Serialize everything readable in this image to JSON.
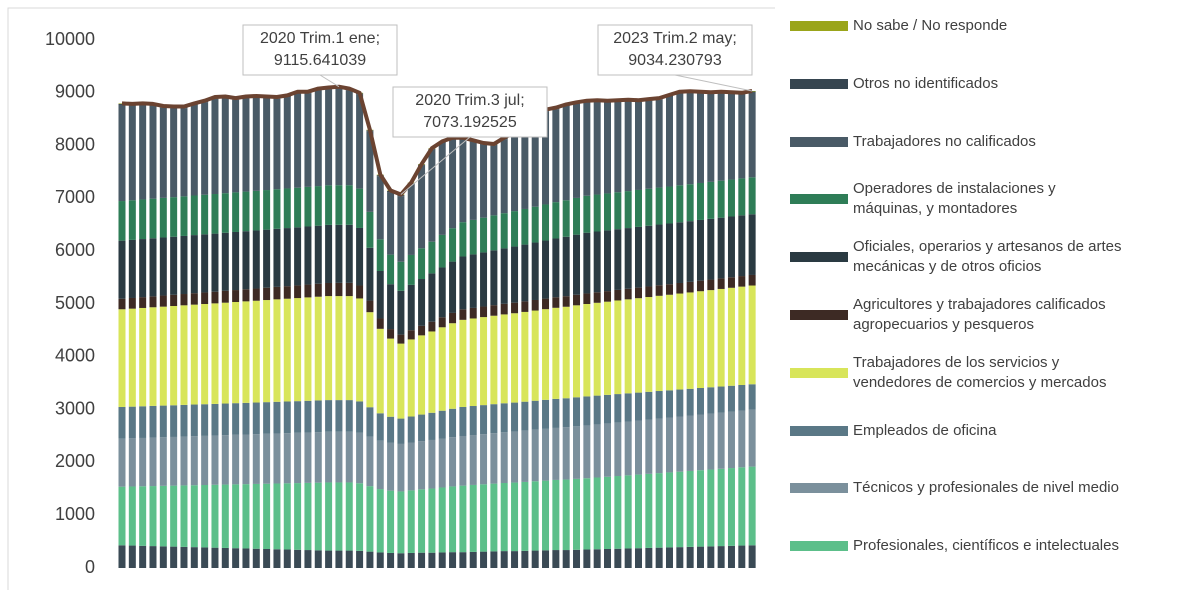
{
  "chart_data": {
    "type": "bar",
    "stacked": true,
    "legend": "right",
    "categories": [
      null,
      null,
      null,
      null,
      null,
      null,
      null,
      null,
      null,
      null,
      null,
      null,
      null,
      null,
      null,
      null,
      null,
      null,
      null,
      null,
      null,
      "2020 Trim.1 ene;",
      null,
      null,
      null,
      null,
      null,
      "2020 Trim.3 jul;",
      null,
      null,
      null,
      null,
      null,
      null,
      null,
      null,
      null,
      null,
      null,
      null,
      null,
      null,
      null,
      null,
      null,
      null,
      null,
      null,
      null,
      null,
      null,
      null,
      null,
      null,
      null,
      null,
      null,
      null,
      null,
      null,
      null,
      "2023 Trim.2 may;"
    ],
    "ylim": [
      0,
      10000
    ],
    "yticks": [
      0,
      1000,
      2000,
      3000,
      4000,
      5000,
      6000,
      7000,
      8000,
      9000,
      10000
    ],
    "series": [
      {
        "color": "#3a4a55",
        "values": [
          430,
          425,
          420,
          415,
          410,
          405,
          400,
          395,
          390,
          385,
          380,
          375,
          370,
          365,
          360,
          355,
          350,
          345,
          340,
          335,
          330,
          330,
          330,
          325,
          310,
          295,
          285,
          280,
          285,
          290,
          290,
          295,
          300,
          300,
          305,
          310,
          315,
          320,
          320,
          325,
          330,
          335,
          340,
          340,
          345,
          350,
          355,
          360,
          365,
          370,
          375,
          380,
          385,
          390,
          395,
          400,
          405,
          410,
          415,
          420,
          425,
          430
        ]
      },
      {
        "name": "Profesionales, científicos e intelectuales",
        "color": "#5cbf8a",
        "values": [
          1110,
          1119,
          1128,
          1137,
          1146,
          1155,
          1164,
          1173,
          1182,
          1191,
          1200,
          1209,
          1218,
          1227,
          1236,
          1245,
          1254,
          1263,
          1272,
          1281,
          1290,
          1290,
          1290,
          1280,
          1240,
          1200,
          1180,
          1170,
          1185,
          1200,
          1215,
          1230,
          1245,
          1260,
          1268,
          1275,
          1283,
          1290,
          1298,
          1305,
          1313,
          1320,
          1328,
          1335,
          1343,
          1350,
          1359,
          1368,
          1377,
          1385,
          1394,
          1403,
          1412,
          1420,
          1429,
          1438,
          1447,
          1455,
          1464,
          1473,
          1482,
          1490
        ]
      },
      {
        "name": "Técnicos y profesionales de nivel medio",
        "color": "#7b909c",
        "values": [
          910,
          912,
          915,
          918,
          920,
          922,
          925,
          928,
          930,
          932,
          935,
          938,
          940,
          942,
          945,
          948,
          950,
          952,
          955,
          958,
          960,
          960,
          960,
          955,
          935,
          915,
          905,
          900,
          907,
          913,
          920,
          927,
          933,
          940,
          945,
          950,
          955,
          960,
          965,
          970,
          975,
          980,
          985,
          990,
          995,
          1000,
          1005,
          1010,
          1015,
          1020,
          1025,
          1030,
          1035,
          1040,
          1045,
          1050,
          1055,
          1060,
          1065,
          1070,
          1075,
          1080
        ]
      },
      {
        "name": "Empleados de oficina",
        "color": "#5a7886",
        "values": [
          600,
          600,
          600,
          600,
          600,
          600,
          600,
          600,
          600,
          600,
          600,
          600,
          600,
          600,
          600,
          600,
          600,
          600,
          600,
          600,
          600,
          600,
          600,
          595,
          560,
          520,
          495,
          480,
          492,
          503,
          515,
          527,
          538,
          550,
          550,
          550,
          550,
          550,
          550,
          550,
          550,
          550,
          550,
          550,
          550,
          550,
          546,
          541,
          537,
          533,
          528,
          524,
          520,
          515,
          511,
          506,
          502,
          498,
          493,
          489,
          484,
          480
        ]
      },
      {
        "name": "Trabajadores de los servicios y\nvendedores de comercios y mercados",
        "color": "#d8e55a",
        "values": [
          1850,
          1856,
          1862,
          1868,
          1874,
          1880,
          1886,
          1892,
          1898,
          1904,
          1910,
          1916,
          1922,
          1928,
          1934,
          1940,
          1946,
          1952,
          1958,
          1964,
          1970,
          1970,
          1970,
          1950,
          1800,
          1600,
          1480,
          1420,
          1460,
          1500,
          1540,
          1580,
          1620,
          1650,
          1658,
          1667,
          1675,
          1683,
          1692,
          1700,
          1708,
          1717,
          1725,
          1733,
          1742,
          1750,
          1758,
          1765,
          1773,
          1780,
          1788,
          1795,
          1803,
          1810,
          1818,
          1825,
          1833,
          1840,
          1848,
          1855,
          1863,
          1870
        ]
      },
      {
        "name": "Agricultores y trabajadores calificados\nagropecuarios y pesqueros",
        "color": "#3d2a24",
        "values": [
          200,
          202,
          205,
          207,
          210,
          212,
          214,
          217,
          219,
          221,
          224,
          226,
          229,
          231,
          233,
          236,
          238,
          240,
          243,
          245,
          248,
          250,
          250,
          245,
          220,
          195,
          180,
          170,
          175,
          180,
          185,
          190,
          195,
          200,
          200,
          200,
          200,
          200,
          200,
          200,
          200,
          200,
          200,
          200,
          200,
          200,
          200,
          200,
          200,
          200,
          200,
          200,
          200,
          200,
          200,
          200,
          200,
          200,
          200,
          200,
          200,
          200
        ]
      },
      {
        "name": "Oficiales, operarios y artesanos de artes\nmecánicas y de otros oficios",
        "color": "#2a3a42",
        "values": [
          1100,
          1100,
          1100,
          1100,
          1100,
          1100,
          1100,
          1100,
          1100,
          1100,
          1100,
          1100,
          1100,
          1100,
          1100,
          1100,
          1100,
          1100,
          1100,
          1100,
          1100,
          1100,
          1100,
          1090,
          1000,
          900,
          850,
          830,
          858,
          887,
          915,
          943,
          972,
          1000,
          1013,
          1025,
          1038,
          1050,
          1063,
          1075,
          1088,
          1100,
          1113,
          1125,
          1138,
          1150,
          1150,
          1150,
          1150,
          1150,
          1150,
          1150,
          1150,
          1150,
          1150,
          1150,
          1150,
          1150,
          1150,
          1150,
          1150,
          1150
        ]
      },
      {
        "name": "Operadores de instalaciones y\nmáquinas, y montadores",
        "color": "#2e7d57",
        "values": [
          750,
          750,
          750,
          750,
          750,
          750,
          750,
          750,
          750,
          750,
          750,
          750,
          750,
          750,
          750,
          750,
          750,
          750,
          750,
          750,
          750,
          750,
          750,
          745,
          680,
          600,
          560,
          550,
          567,
          583,
          600,
          617,
          633,
          650,
          654,
          658,
          663,
          667,
          671,
          675,
          679,
          683,
          688,
          692,
          696,
          700,
          700,
          700,
          700,
          700,
          700,
          700,
          700,
          700,
          700,
          700,
          700,
          700,
          700,
          700,
          700,
          700
        ]
      },
      {
        "name": "Trabajadores no calificados",
        "color": "#495a66",
        "values": [
          1820,
          1796,
          1790,
          1765,
          1710,
          1686,
          1671,
          1715,
          1751,
          1807,
          1801,
          1756,
          1771,
          1767,
          1742,
          1716,
          1732,
          1788,
          1772,
          1817,
          1822,
          1836,
          1800,
          1785,
          1525,
          1195,
          1185,
          1243,
          1341,
          1564,
          1740,
          1741,
          1684,
          1570,
          1477,
          1385,
          1321,
          1400,
          1461,
          1570,
          1677,
          1765,
          1761,
          1785,
          1781,
          1770,
          1757,
          1726,
          1713,
          1702,
          1670,
          1668,
          1665,
          1705,
          1742,
          1731,
          1698,
          1667,
          1655,
          1623,
          1591,
          1604
        ]
      },
      {
        "name": "Otros no identificados",
        "color": "#364550",
        "values": [
          20,
          20,
          20,
          20,
          20,
          20,
          20,
          20,
          20,
          20,
          20,
          20,
          20,
          20,
          20,
          20,
          20,
          20,
          20,
          20,
          20,
          20,
          20,
          20,
          20,
          20,
          20,
          20,
          20,
          20,
          20,
          20,
          20,
          20,
          20,
          20,
          20,
          20,
          20,
          20,
          20,
          20,
          20,
          20,
          20,
          20,
          20,
          20,
          20,
          20,
          20,
          20,
          20,
          20,
          20,
          20,
          20,
          20,
          20,
          20,
          20,
          20
        ]
      },
      {
        "name": "No sabe / No responde",
        "color": "#9aa51a",
        "values": [
          10,
          10,
          10,
          10,
          10,
          10,
          10,
          10,
          10,
          10,
          10,
          10,
          10,
          10,
          10,
          10,
          10,
          10,
          10,
          10,
          10,
          10,
          10,
          10,
          10,
          10,
          10,
          10,
          10,
          10,
          10,
          10,
          10,
          10,
          10,
          10,
          10,
          10,
          10,
          10,
          10,
          10,
          10,
          10,
          10,
          10,
          10,
          10,
          10,
          10,
          10,
          10,
          10,
          10,
          10,
          10,
          10,
          10,
          10,
          10,
          10,
          10
        ]
      }
    ],
    "total": {
      "color": "#6b4331",
      "values": [
        8800,
        8790,
        8800,
        8790,
        8750,
        8740,
        8740,
        8800,
        8850,
        8920,
        8930,
        8900,
        8930,
        8940,
        8930,
        8920,
        8950,
        9020,
        9020,
        9080,
        9100,
        9115.641039,
        9080,
        9000,
        8300,
        7450,
        7150,
        7073.192525,
        7300,
        7650,
        7950,
        8080,
        8150,
        8150,
        8100,
        8050,
        8030,
        8150,
        8250,
        8400,
        8550,
        8680,
        8720,
        8780,
        8820,
        8850,
        8860,
        8850,
        8860,
        8870,
        8860,
        8880,
        8900,
        8960,
        9020,
        9030,
        9020,
        9010,
        9020,
        9010,
        9000,
        9034.230793
      ]
    }
  }
}
